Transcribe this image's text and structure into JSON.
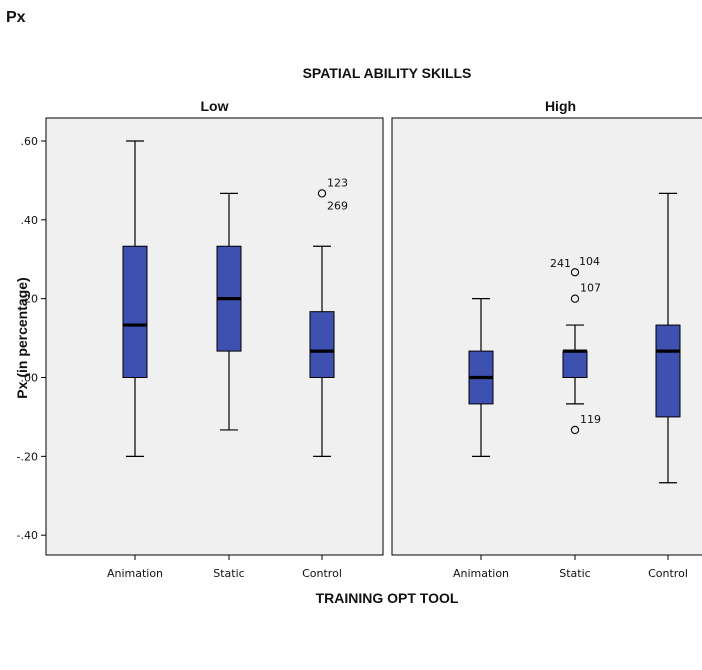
{
  "page_label": "Px",
  "chart_data": {
    "type": "boxplot",
    "title": "SPATIAL ABILITY SKILLS",
    "xlabel": "TRAINING OPT TOOL",
    "ylabel": "Px (in percentage)",
    "ylim": [
      -0.46,
      0.65
    ],
    "yticks": [
      -0.4,
      -0.2,
      0.0,
      0.2,
      0.4,
      0.6
    ],
    "ytick_labels": [
      "-.40",
      "-.20",
      ".00",
      ".20",
      ".40",
      ".60"
    ],
    "categories": [
      "Animation",
      "Static",
      "Control"
    ],
    "grid": false,
    "colors": {
      "box_fill": "#3f51b0",
      "panel_bg": "#f0f0f0",
      "median": "#000000"
    },
    "panels": [
      {
        "name": "Low",
        "boxes": [
          {
            "category": "Animation",
            "whisker_low": -0.2,
            "q1": 0.0,
            "median": 0.133,
            "q3": 0.333,
            "whisker_high": 0.6,
            "outliers": []
          },
          {
            "category": "Static",
            "whisker_low": -0.133,
            "q1": 0.067,
            "median": 0.2,
            "q3": 0.333,
            "whisker_high": 0.467,
            "outliers": []
          },
          {
            "category": "Control",
            "whisker_low": -0.2,
            "q1": 0.0,
            "median": 0.067,
            "q3": 0.167,
            "whisker_high": 0.333,
            "outliers": [
              {
                "value": 0.467,
                "labels": [
                  "123",
                  "269"
                ]
              }
            ]
          }
        ]
      },
      {
        "name": "High",
        "boxes": [
          {
            "category": "Animation",
            "whisker_low": -0.2,
            "q1": -0.067,
            "median": 0.0,
            "q3": 0.067,
            "whisker_high": 0.2,
            "outliers": []
          },
          {
            "category": "Static",
            "whisker_low": -0.067,
            "q1": 0.0,
            "median": 0.067,
            "q3": 0.067,
            "whisker_high": 0.133,
            "outliers": [
              {
                "value": 0.267,
                "labels": [
                  "241",
                  "104"
                ]
              },
              {
                "value": 0.2,
                "labels": [
                  "107"
                ]
              },
              {
                "value": -0.133,
                "labels": [
                  "119"
                ]
              }
            ]
          },
          {
            "category": "Control",
            "whisker_low": -0.267,
            "q1": -0.1,
            "median": 0.067,
            "q3": 0.133,
            "whisker_high": 0.467,
            "outliers": []
          }
        ]
      }
    ]
  }
}
